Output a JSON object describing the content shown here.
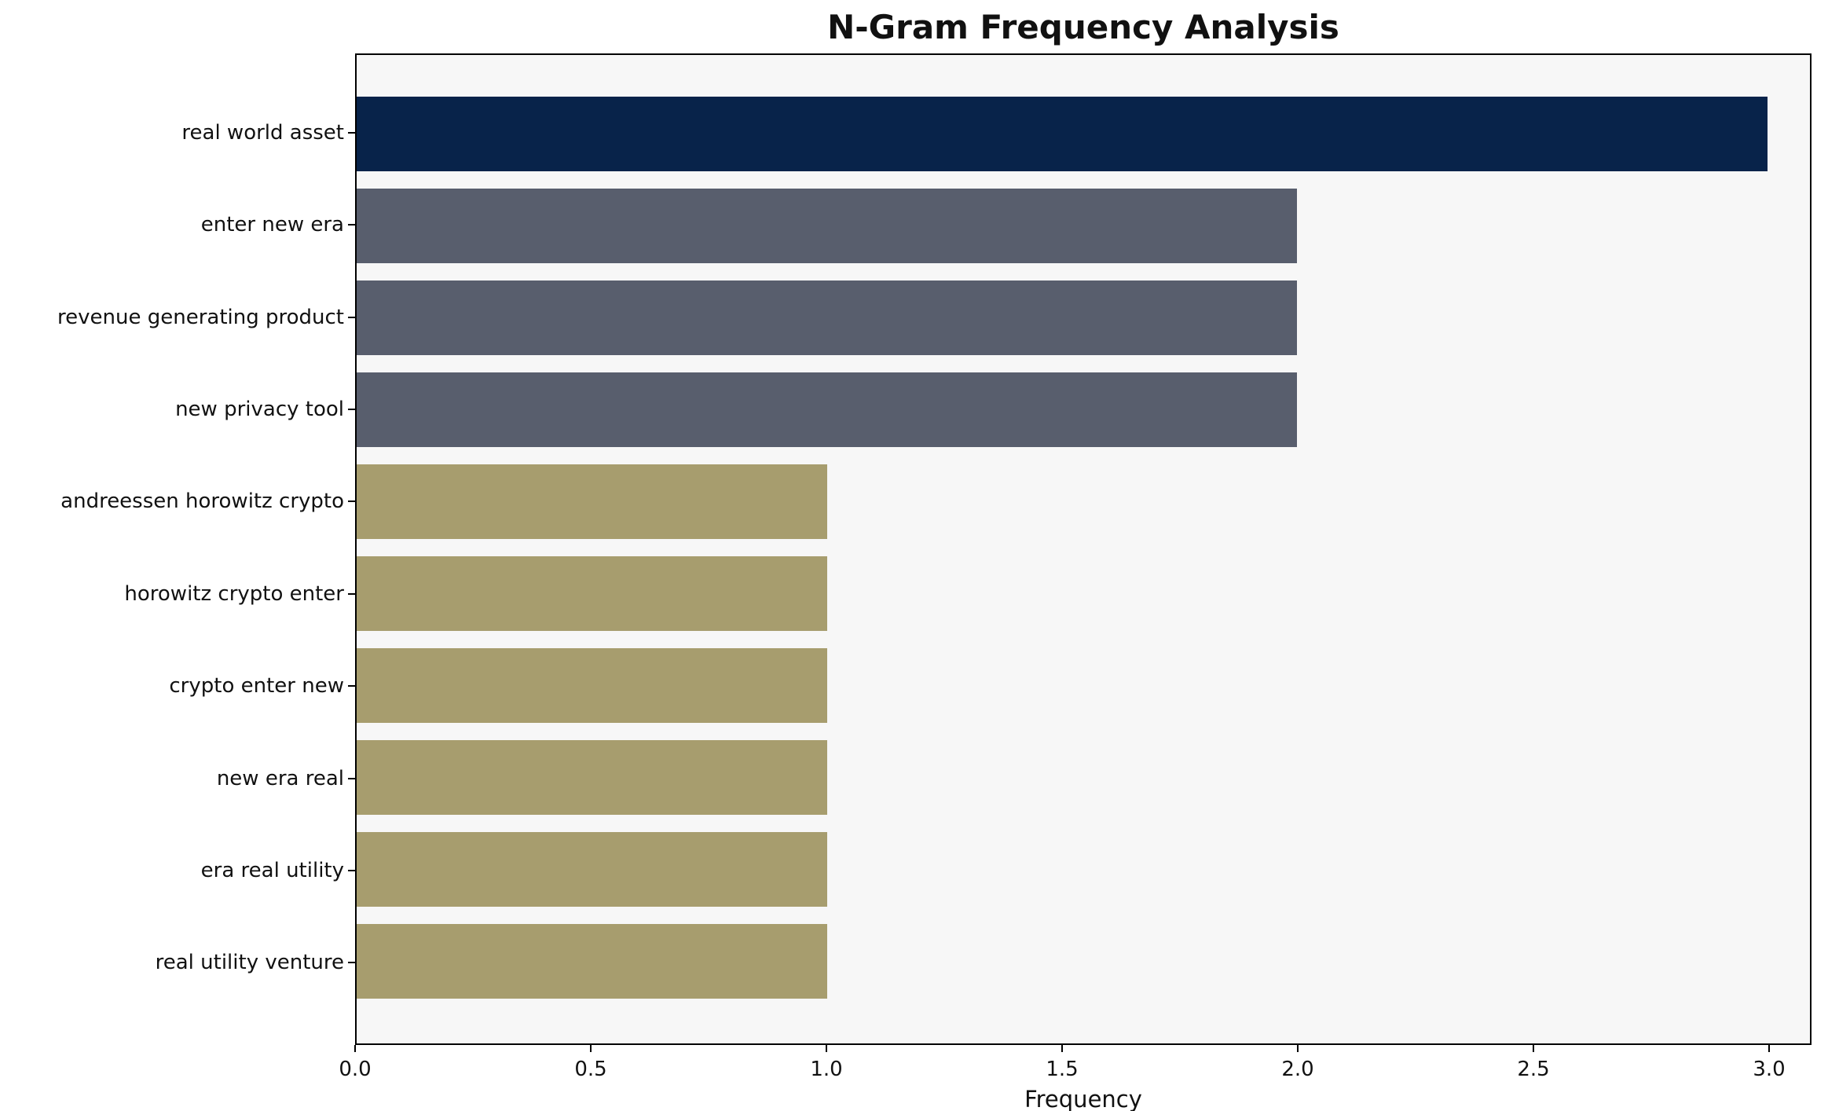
{
  "chart_data": {
    "type": "bar",
    "orientation": "horizontal",
    "title": "N-Gram Frequency Analysis",
    "xlabel": "Frequency",
    "ylabel": "",
    "categories": [
      "real world asset",
      "enter new era",
      "revenue generating product",
      "new privacy tool",
      "andreessen horowitz crypto",
      "horowitz crypto enter",
      "crypto enter new",
      "new era real",
      "era real utility",
      "real utility venture"
    ],
    "values": [
      3,
      2,
      2,
      2,
      1,
      1,
      1,
      1,
      1,
      1
    ],
    "xlim": [
      0,
      3.09
    ],
    "xticks": [
      0,
      0.5,
      1,
      1.5,
      2,
      2.5,
      3
    ],
    "xtick_labels": [
      "0.0",
      "0.5",
      "1.0",
      "1.5",
      "2.0",
      "2.5",
      "3.0"
    ],
    "bar_colors": [
      "#08234a",
      "#585e6d",
      "#585e6d",
      "#585e6d",
      "#a79d6e",
      "#a79d6e",
      "#a79d6e",
      "#a79d6e",
      "#a79d6e",
      "#a79d6e"
    ],
    "plot_background": "#f7f7f7",
    "page_background": "#ffffff",
    "axis_color": "#000000",
    "grid": false,
    "legend": null
  }
}
